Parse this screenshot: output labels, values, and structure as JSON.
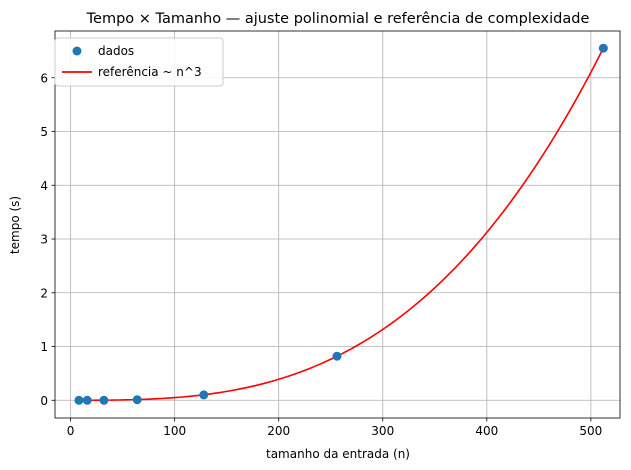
{
  "chart_data": {
    "type": "scatter",
    "title": "Tempo × Tamanho — ajuste polinomial e referência de complexidade",
    "xlabel": "tamanho da entrada (n)",
    "ylabel": "tempo (s)",
    "xlim": [
      -15,
      528
    ],
    "ylim": [
      -0.33,
      6.87
    ],
    "xticks": [
      0,
      100,
      200,
      300,
      400,
      500
    ],
    "yticks": [
      0,
      1,
      2,
      3,
      4,
      5,
      6
    ],
    "grid": true,
    "legend_position": "top-left",
    "series": [
      {
        "name": "dados",
        "kind": "scatter",
        "color": "#1f77b4",
        "x": [
          8,
          16,
          32,
          64,
          128,
          256,
          512
        ],
        "y": [
          0.0,
          0.0,
          0.0,
          0.01,
          0.1,
          0.82,
          6.55
        ]
      },
      {
        "name": "referência ~ n^3",
        "kind": "line",
        "color": "#ff0000",
        "function": "cubic",
        "coefficient": 4.88e-08,
        "x_range": [
          8,
          512
        ]
      }
    ]
  }
}
